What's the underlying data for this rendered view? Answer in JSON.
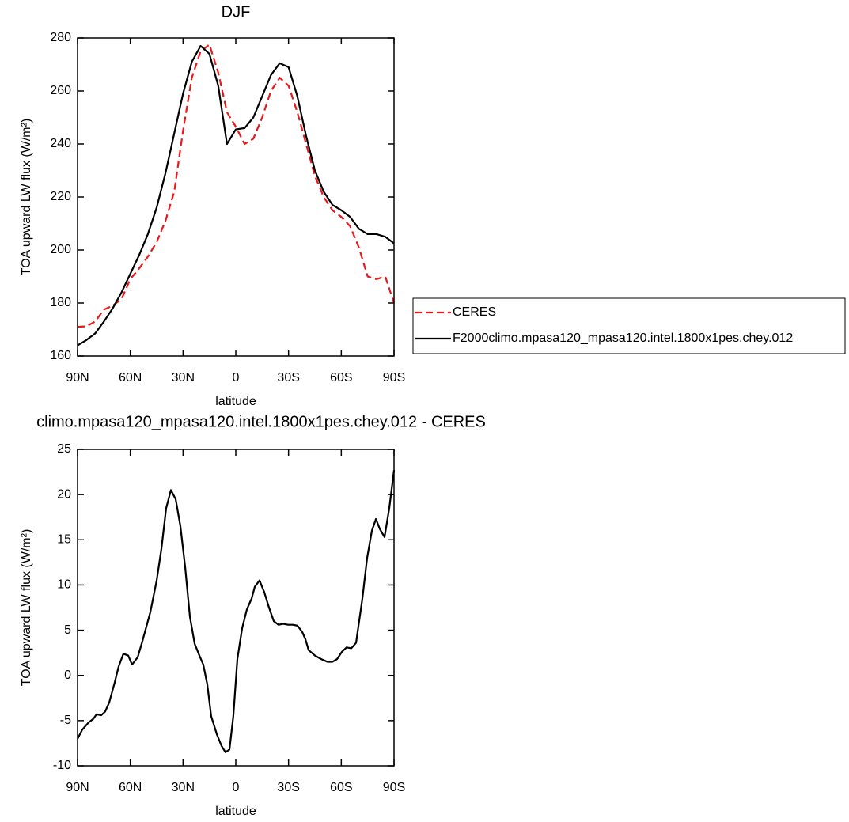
{
  "chart_data": [
    {
      "type": "line",
      "title": "DJF",
      "xlabel": "latitude",
      "ylabel": "TOA upward LW flux (W/m²)",
      "x": [
        90,
        85,
        80,
        75,
        70,
        65,
        60,
        55,
        50,
        45,
        40,
        35,
        30,
        25,
        20,
        15,
        10,
        5,
        0,
        -5,
        -10,
        -15,
        -20,
        -25,
        -30,
        -35,
        -40,
        -45,
        -50,
        -55,
        -60,
        -65,
        -70,
        -75,
        -80,
        -85,
        -90
      ],
      "series": [
        {
          "name": "CERES",
          "color": "#e41a1c",
          "linestyle": "dashed",
          "values": [
            171,
            171.2,
            173,
            177.5,
            179,
            181.5,
            189,
            193,
            197.5,
            203,
            211,
            222,
            245,
            265,
            275,
            277.5,
            267,
            252,
            246.5,
            240,
            242,
            250,
            260,
            265,
            262,
            252,
            240,
            228,
            220,
            215,
            212.5,
            209,
            201,
            190,
            189,
            190,
            180
          ]
        },
        {
          "name": "F2000climo.mpasa120_mpasa120.intel.1800x1pes.chey.012",
          "color": "#000000",
          "linestyle": "solid",
          "values": [
            164,
            166,
            168.5,
            173,
            178,
            184,
            191,
            198,
            206,
            216,
            229,
            244,
            259,
            271,
            277,
            274,
            262,
            240,
            245.5,
            246,
            250,
            258,
            266,
            270.5,
            269,
            258,
            243,
            230,
            222,
            217,
            215,
            212.5,
            208,
            206,
            206,
            205,
            202.5
          ]
        }
      ],
      "xlim": [
        90,
        -90
      ],
      "xticks": [
        {
          "value": 90,
          "label": "90N"
        },
        {
          "value": 60,
          "label": "60N"
        },
        {
          "value": 30,
          "label": "30N"
        },
        0,
        {
          "value": -30,
          "label": "30S"
        },
        {
          "value": -60,
          "label": "60S"
        },
        {
          "value": -90,
          "label": "90S"
        }
      ],
      "ylim": [
        160,
        280
      ],
      "yticks": [
        160,
        180,
        200,
        220,
        240,
        260,
        280
      ],
      "legend": "right"
    },
    {
      "type": "line",
      "title": "climo.mpasa120_mpasa120.intel.1800x1pes.chey.012 - CERES",
      "xlabel": "latitude",
      "ylabel": "TOA upward LW flux (W/m²)",
      "x": [
        90,
        87.3,
        83.7,
        81,
        79.2,
        76.5,
        74.3,
        72,
        68.9,
        66.6,
        63.9,
        61.2,
        59,
        55.8,
        53.1,
        48.6,
        45,
        42.3,
        39.6,
        36.9,
        34.2,
        31.5,
        28.8,
        26.1,
        23.4,
        20.7,
        18.5,
        16.2,
        14,
        10.8,
        8.1,
        5.9,
        3.6,
        1.4,
        -0.9,
        -3.6,
        -6.3,
        -9,
        -10.8,
        -13.5,
        -16.2,
        -18.9,
        -21.6,
        -24.3,
        -27,
        -29.7,
        -32.4,
        -35.1,
        -37.8,
        -39.6,
        -41.4,
        -45,
        -48.6,
        -52.2,
        -54.9,
        -57.6,
        -60.3,
        -63,
        -65.7,
        -68.4,
        -72,
        -74.7,
        -77.4,
        -79.7,
        -81.9,
        -84.6,
        -87.3,
        -90
      ],
      "values": [
        -7,
        -6,
        -5.2,
        -4.8,
        -4.3,
        -4.4,
        -4,
        -3,
        -0.8,
        1,
        2.4,
        2.2,
        1.2,
        2,
        3.8,
        7,
        10.5,
        14,
        18.5,
        20.5,
        19.5,
        16.5,
        12,
        6.5,
        3.5,
        2.2,
        1.2,
        -1,
        -4.5,
        -6.5,
        -7.8,
        -8.5,
        -8.2,
        -4.5,
        1.8,
        5.2,
        7.3,
        8.5,
        9.8,
        10.5,
        9.2,
        7.5,
        6,
        5.6,
        5.7,
        5.6,
        5.6,
        5.5,
        4.8,
        4,
        2.8,
        2.2,
        1.8,
        1.5,
        1.5,
        1.8,
        2.6,
        3.1,
        3,
        3.6,
        8.5,
        13,
        16,
        17.3,
        16.2,
        15.3,
        18.5,
        22.7
      ],
      "color": "#000000",
      "xlim": [
        90,
        -90
      ],
      "xticks": [
        {
          "value": 90,
          "label": "90N"
        },
        {
          "value": 60,
          "label": "60N"
        },
        {
          "value": 30,
          "label": "30N"
        },
        0,
        {
          "value": -30,
          "label": "30S"
        },
        {
          "value": -60,
          "label": "60S"
        },
        {
          "value": -90,
          "label": "90S"
        }
      ],
      "ylim": [
        -10,
        25
      ],
      "yticks": [
        -10,
        -5,
        0,
        5,
        10,
        15,
        20,
        25
      ]
    }
  ]
}
